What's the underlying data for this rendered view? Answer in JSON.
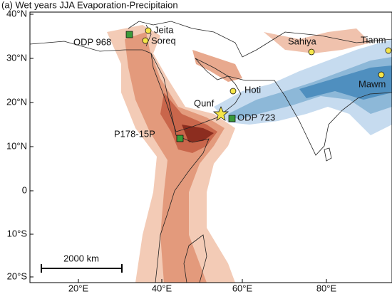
{
  "title": "(a) Wet years JJA Evaporation-Precipitaion",
  "axes": {
    "x_labels": [
      "20°E",
      "40°E",
      "60°E",
      "80°E"
    ],
    "y_labels": [
      "40°N",
      "30°N",
      "20°N",
      "10°N",
      "0",
      "10°S",
      "20°S"
    ]
  },
  "sites": [
    "ODP 968",
    "Jeita",
    "Soreq",
    "Sahiya",
    "Tianm",
    "Mawm",
    "Hoti",
    "Qunf",
    "ODP 723",
    "P178-15P"
  ],
  "scale_bar": "2000 km"
}
